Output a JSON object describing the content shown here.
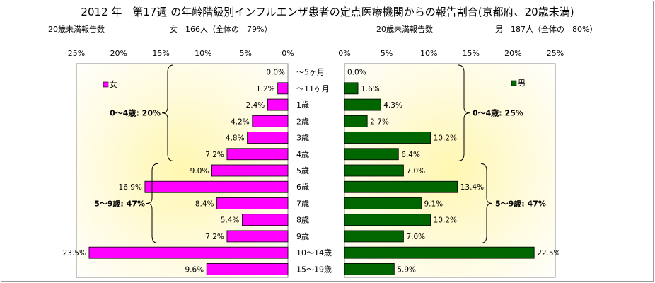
{
  "chart_data": {
    "type": "bar",
    "title": "2012 年　第17週 の年齢階級別インフルエンザ患者の定点医療機関からの報告割合(京都府、20歳未満)",
    "categories": [
      "～5ヶ月",
      "～11ヶ月",
      "1歳",
      "2歳",
      "3歳",
      "4歳",
      "5歳",
      "6歳",
      "7歳",
      "8歳",
      "9歳",
      "10～14歳",
      "15～19歳"
    ],
    "xlim": [
      0,
      25
    ],
    "tick_labels": [
      "0%",
      "5%",
      "10%",
      "15%",
      "20%",
      "25%"
    ],
    "ticks": [
      0,
      5,
      10,
      15,
      20,
      25
    ],
    "gridlines": false,
    "series": [
      {
        "name": "女",
        "color": "#ff00ff",
        "header_label": "20歳未満報告数",
        "header_value": "女　166人（全体の　79%）",
        "values": [
          0.0,
          1.2,
          2.4,
          4.2,
          4.8,
          7.2,
          9.0,
          16.9,
          8.4,
          5.4,
          7.2,
          23.5,
          9.6
        ],
        "data_labels": [
          "0.0%",
          "1.2%",
          "2.4%",
          "4.2%",
          "4.8%",
          "7.2%",
          "9.0%",
          "16.9%",
          "8.4%",
          "5.4%",
          "7.2%",
          "23.5%",
          "9.6%"
        ],
        "groups": [
          {
            "label": "0～4歳: 20%",
            "from": 0,
            "to": 5
          },
          {
            "label": "5～9歳: 47%",
            "from": 6,
            "to": 10
          }
        ]
      },
      {
        "name": "男",
        "color": "#006600",
        "header_label": "20歳未満報告数",
        "header_value": "男　187人（全体の　80%）",
        "values": [
          0.0,
          1.6,
          4.3,
          2.7,
          10.2,
          6.4,
          7.0,
          13.4,
          9.1,
          10.2,
          7.0,
          22.5,
          5.9
        ],
        "data_labels": [
          "0.0%",
          "1.6%",
          "4.3%",
          "2.7%",
          "10.2%",
          "6.4%",
          "7.0%",
          "13.4%",
          "9.1%",
          "10.2%",
          "7.0%",
          "22.5%",
          "5.9%"
        ],
        "groups": [
          {
            "label": "0～4歳: 25%",
            "from": 0,
            "to": 5
          },
          {
            "label": "5～9歳: 47%",
            "from": 6,
            "to": 10
          }
        ]
      }
    ],
    "plot_background": "radial-gradient yellow-white"
  }
}
